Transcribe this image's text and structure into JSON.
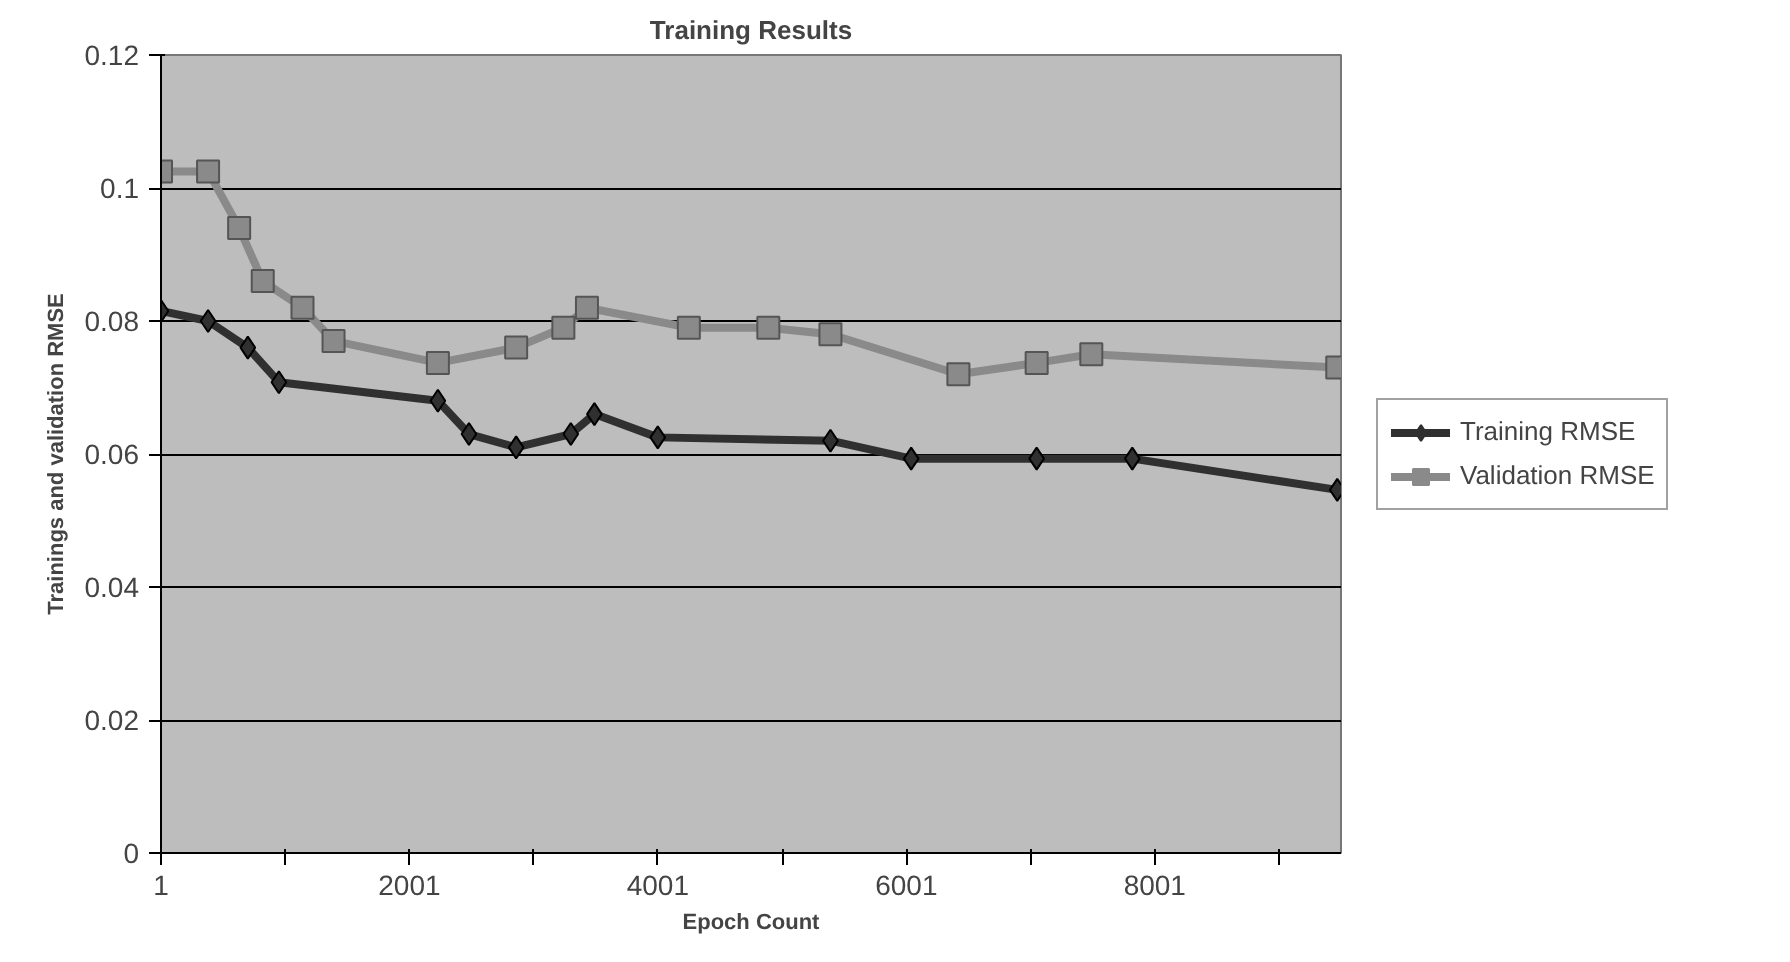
{
  "chart_data": {
    "type": "line",
    "title": "Training Results",
    "xlabel": "Epoch Count",
    "ylabel": "Trainings and validation RMSE",
    "xlim": [
      1,
      9500
    ],
    "xticks": [
      1,
      {
        "value": 1001,
        "label": null
      },
      2001,
      {
        "value": 3001,
        "label": null
      },
      4001,
      {
        "value": 5001,
        "label": null
      },
      6001,
      {
        "value": 7001,
        "label": null
      },
      8001,
      {
        "value": 9001,
        "label": null
      }
    ],
    "ylim": [
      0,
      0.12
    ],
    "yticks": [
      0,
      0.02,
      0.04,
      0.06,
      0.08,
      0.1,
      0.12
    ],
    "grid": "y",
    "legend": "right",
    "line_style": "solid",
    "series": [
      {
        "name": "Training RMSE",
        "color": "#303030",
        "marker": "diamond",
        "x": [
          1,
          380,
          700,
          950,
          2230,
          2480,
          2860,
          3300,
          3490,
          4000,
          5390,
          6040,
          7050,
          7820,
          9470
        ],
        "values": [
          0.0815,
          0.08,
          0.076,
          0.0708,
          0.068,
          0.063,
          0.061,
          0.063,
          0.066,
          0.0625,
          0.062,
          0.0593,
          0.0593,
          0.0593,
          0.0546
        ]
      },
      {
        "name": "Validation RMSE",
        "color": "#8a8a8a",
        "marker": "square",
        "x": [
          1,
          380,
          630,
          820,
          1140,
          1390,
          2230,
          2860,
          3240,
          3430,
          4250,
          4890,
          5390,
          6420,
          7050,
          7490,
          9470
        ],
        "values": [
          0.1025,
          0.1025,
          0.094,
          0.086,
          0.082,
          0.077,
          0.0737,
          0.076,
          0.079,
          0.082,
          0.079,
          0.079,
          0.078,
          0.072,
          0.0737,
          0.075,
          0.073
        ]
      }
    ]
  }
}
